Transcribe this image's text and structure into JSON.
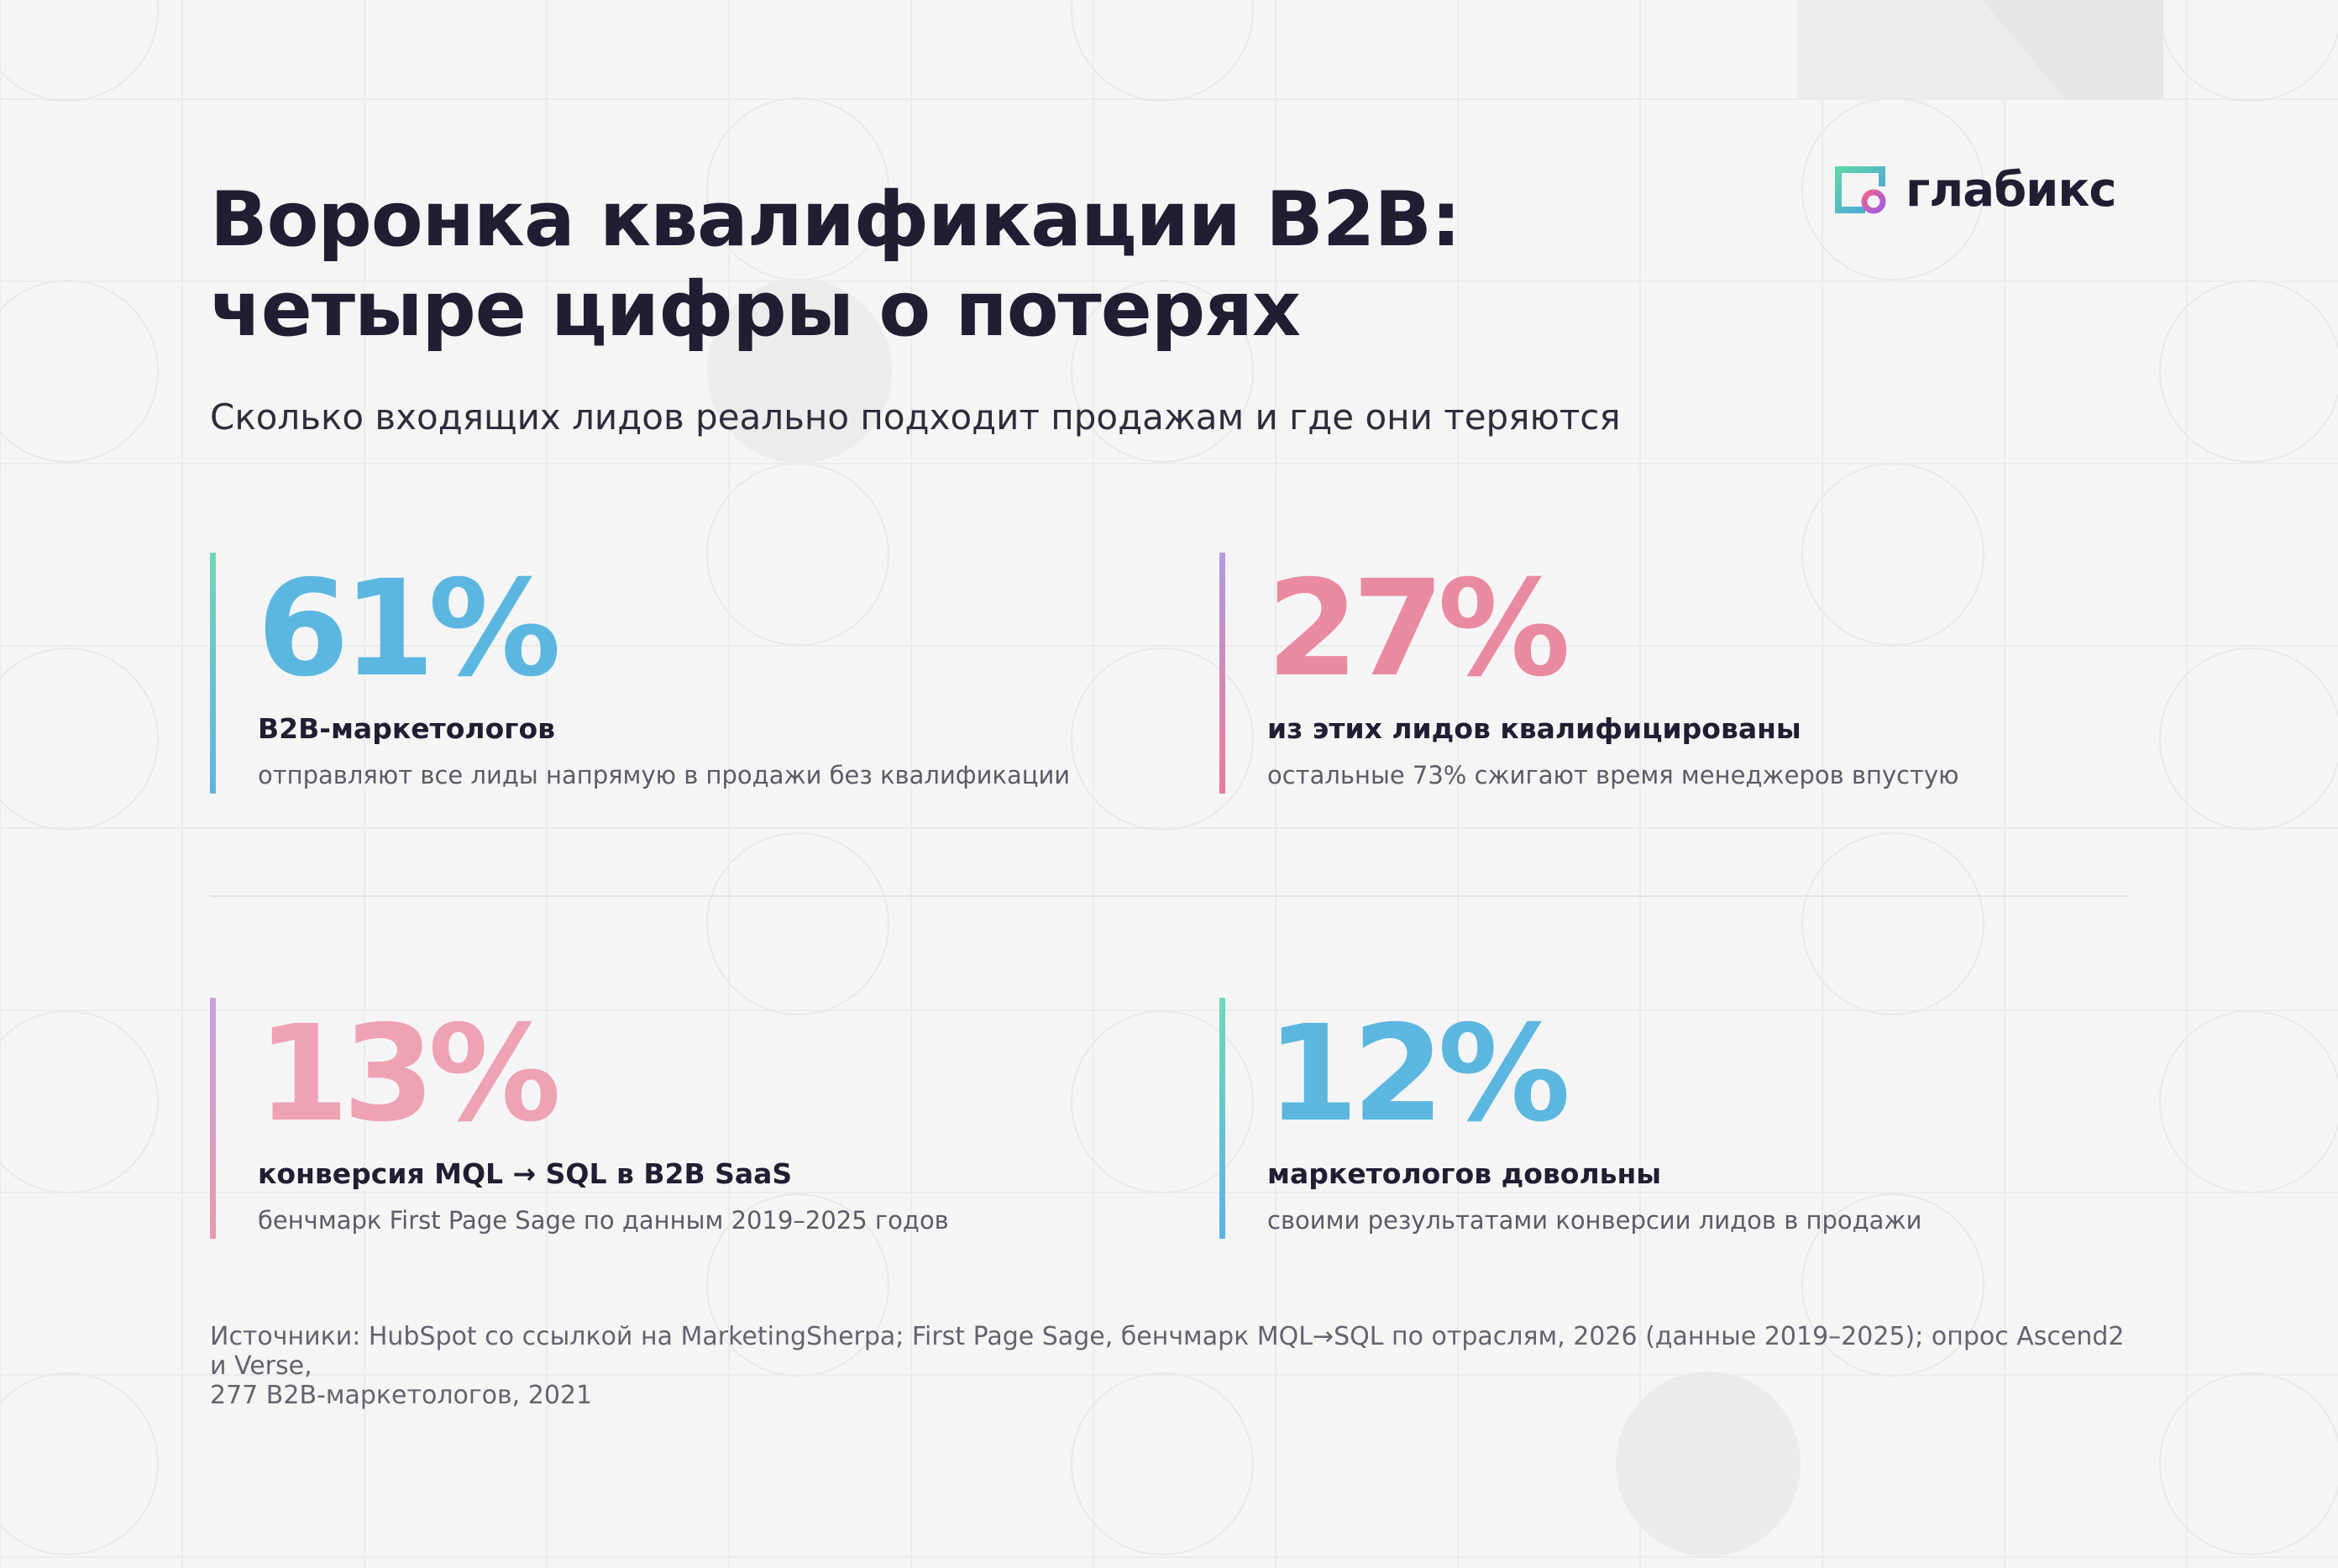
{
  "brand": {
    "name": "глабикс",
    "logo_icon": "glabix-logo-icon"
  },
  "header": {
    "title_line1": "Воронка квалификации B2B:",
    "title_line2": "четыре цифры о потерях",
    "subtitle": "Сколько входящих лидов реально подходит продажам и где они теряются"
  },
  "stats": [
    {
      "value": "61%",
      "label": "B2B-маркетологов",
      "description": "отправляют все лиды напрямую в продажи без квалификации",
      "color": "#5cb7e0",
      "bar_colors": [
        "#6fd8b9",
        "#5cb3e6"
      ]
    },
    {
      "value": "27%",
      "label": "из этих лидов квалифицированы",
      "description": "остальные 73% сжигают время менеджеров впустую",
      "color": "#ea8aa0",
      "bar_colors": [
        "#b49ae0",
        "#ea7d95"
      ]
    },
    {
      "value": "13%",
      "label": "конверсия MQL → SQL в B2B SaaS",
      "description": "бенчмарк First Page Sage по данным 2019–2025 годов",
      "color": "#eea2b4",
      "bar_colors": [
        "#c79ee3",
        "#eb9aaa"
      ]
    },
    {
      "value": "12%",
      "label": "маркетологов довольны",
      "description": "своими результатами конверсии лидов в продажи",
      "color": "#5cb7e0",
      "bar_colors": [
        "#6fd8b9",
        "#5cb3e6"
      ]
    }
  ],
  "footer": {
    "sources_line1": "Источники: HubSpot со ссылкой на MarketingSherpa; First Page Sage, бенчмарк MQL→SQL по отраслям, 2026 (данные 2019–2025); опрос Ascend2 и Verse,",
    "sources_line2": "277 B2B-маркетологов, 2021"
  }
}
